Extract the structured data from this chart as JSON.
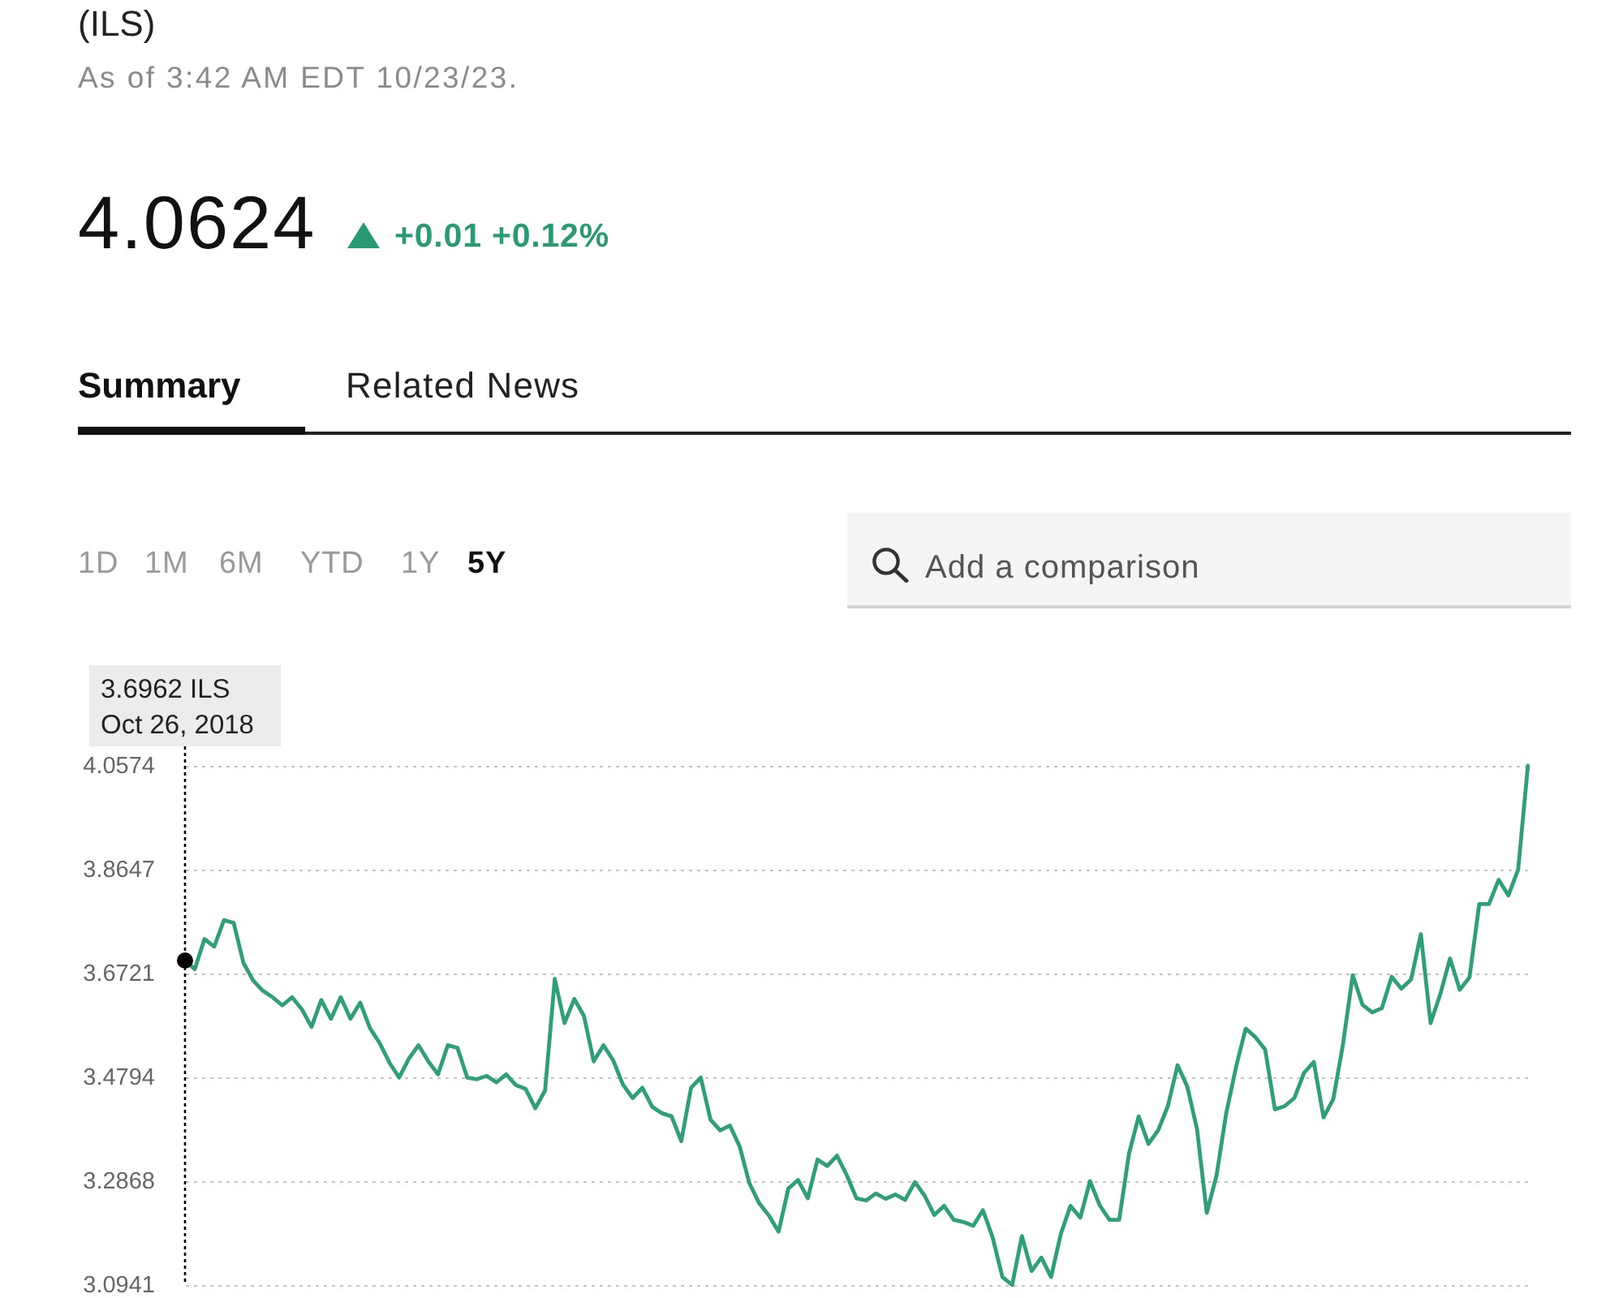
{
  "chart_data": {
    "type": "line",
    "title": "(ILS)",
    "subtitle": "As of 3:42 AM EDT 10/23/23.",
    "annotations": [
      "4.0624",
      "+0.01 +0.12%",
      "Summary",
      "Related News",
      "1D",
      "1M",
      "6M",
      "YTD",
      "1Y",
      "5Y",
      "Add a comparison",
      "3.6962 ILS\nOct 26, 2018"
    ],
    "categories": [
      null,
      null,
      null,
      null,
      null,
      null,
      null,
      null,
      null,
      null,
      null,
      null,
      null,
      null,
      null,
      null,
      null,
      null,
      null,
      null,
      null,
      null,
      null,
      null,
      null,
      null,
      null,
      null,
      null,
      null,
      null,
      null,
      null,
      null,
      null,
      null,
      null,
      null,
      null,
      null,
      null,
      null,
      null,
      null,
      null,
      null,
      null,
      null,
      null,
      null,
      null,
      null,
      null,
      null,
      null,
      null,
      null,
      null,
      null,
      null,
      null,
      null,
      null,
      null,
      null,
      null,
      null,
      null,
      null,
      null,
      null,
      null,
      null,
      null,
      null,
      null,
      null,
      null,
      null,
      null,
      null,
      null,
      null,
      null,
      null,
      null,
      null,
      null,
      null,
      null,
      null,
      null,
      null,
      null,
      null,
      null,
      null,
      null,
      null,
      null,
      null,
      null,
      null,
      null,
      null,
      null,
      null,
      null,
      null,
      null,
      null,
      null,
      null,
      null,
      null,
      null,
      null,
      null,
      null,
      null,
      null,
      null,
      null,
      null,
      null,
      null,
      null,
      null,
      null,
      null,
      null,
      null,
      null,
      null,
      null,
      null,
      null,
      null,
      null
    ],
    "series": [
      {
        "color": "#2f9e7a",
        "values": [
          3.6962,
          3.68,
          3.736,
          3.722,
          3.771,
          3.766,
          3.692,
          3.659,
          3.64,
          3.628,
          3.613,
          3.628,
          3.606,
          3.573,
          3.623,
          3.588,
          3.628,
          3.588,
          3.618,
          3.571,
          3.543,
          3.507,
          3.479,
          3.514,
          3.539,
          3.509,
          3.485,
          3.539,
          3.534,
          3.479,
          3.476,
          3.482,
          3.47,
          3.485,
          3.465,
          3.458,
          3.422,
          3.455,
          3.662,
          3.58,
          3.625,
          3.593,
          3.509,
          3.539,
          3.511,
          3.466,
          3.441,
          3.46,
          3.425,
          3.413,
          3.407,
          3.361,
          3.46,
          3.479,
          3.401,
          3.381,
          3.39,
          3.351,
          3.283,
          3.246,
          3.223,
          3.193,
          3.273,
          3.289,
          3.255,
          3.327,
          3.315,
          3.334,
          3.298,
          3.255,
          3.251,
          3.264,
          3.254,
          3.262,
          3.252,
          3.285,
          3.26,
          3.224,
          3.241,
          3.215,
          3.211,
          3.204,
          3.233,
          3.182,
          3.109,
          3.0941,
          3.185,
          3.12,
          3.145,
          3.109,
          3.189,
          3.241,
          3.219,
          3.287,
          3.242,
          3.215,
          3.215,
          3.337,
          3.407,
          3.356,
          3.381,
          3.426,
          3.502,
          3.462,
          3.383,
          3.228,
          3.297,
          3.413,
          3.498,
          3.57,
          3.554,
          3.531,
          3.42,
          3.426,
          3.441,
          3.488,
          3.508,
          3.405,
          3.439,
          3.541,
          3.669,
          3.614,
          3.6,
          3.608,
          3.666,
          3.644,
          3.661,
          3.745,
          3.58,
          3.634,
          3.7,
          3.642,
          3.665,
          3.801,
          3.801,
          3.846,
          3.817,
          3.865,
          4.0574
        ]
      }
    ],
    "ylim": [
      3.0941,
      4.0574
    ],
    "yticks": [
      3.0941,
      3.2868,
      3.4794,
      3.6721,
      3.8647,
      4.0574
    ],
    "grid": "y",
    "tick_labels": "y"
  }
}
